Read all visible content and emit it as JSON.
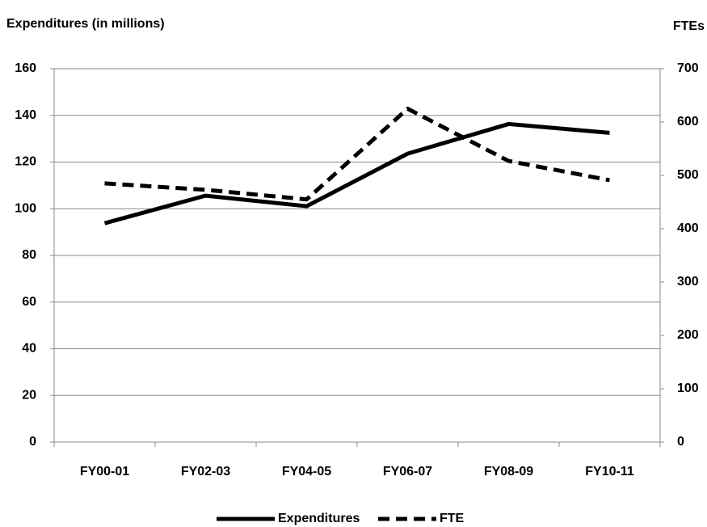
{
  "chart_data": {
    "type": "line",
    "y_label": "Expenditures (in millions)",
    "y2_label": "FTEs",
    "categories": [
      "FY00-01",
      "FY02-03",
      "FY04-05",
      "FY06-07",
      "FY08-09",
      "FY10-11"
    ],
    "series": [
      {
        "name": "Expenditures",
        "color": "#000000",
        "dash": "solid",
        "values": [
          93.8,
          105.6,
          101.1,
          123.6,
          136.3,
          132.5
        ]
      },
      {
        "name": "FTE",
        "color": "#000000",
        "dash": "dashed",
        "axis": "y2",
        "values": [
          485,
          473,
          455,
          625,
          527,
          491
        ]
      }
    ],
    "ylim": [
      0,
      160
    ],
    "yticks": [
      0,
      20,
      40,
      60,
      80,
      100,
      120,
      140,
      160
    ],
    "y2lim": [
      0,
      700
    ],
    "y2ticks": [
      0,
      100,
      200,
      300,
      400,
      500,
      600,
      700
    ],
    "grid": true,
    "legend": "bottom"
  }
}
